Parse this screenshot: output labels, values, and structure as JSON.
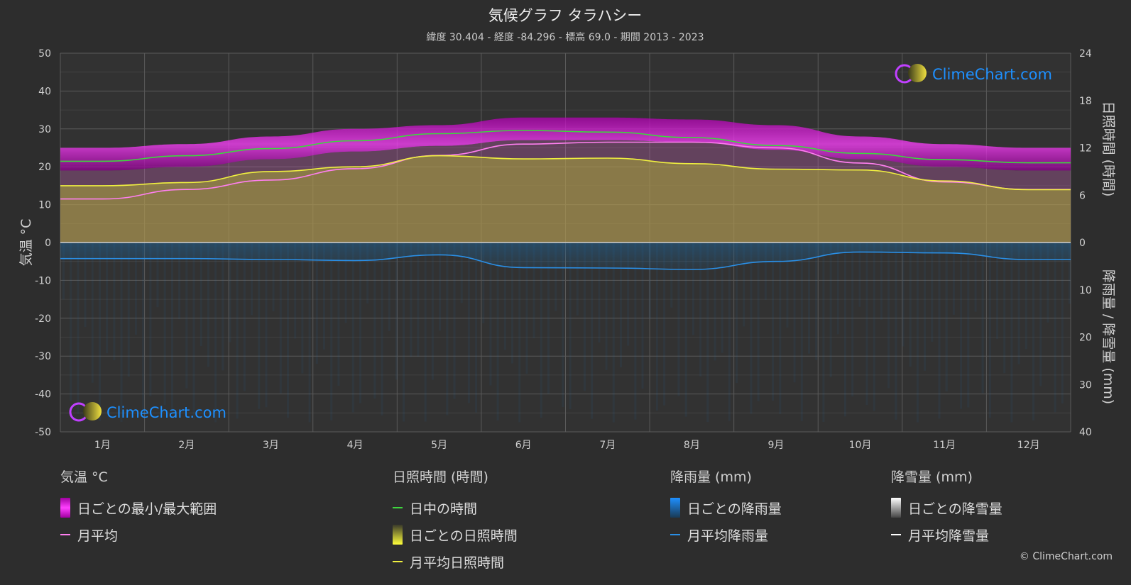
{
  "title": "気候グラフ タラハシー",
  "subtitle": "緯度 30.404 - 経度 -84.296 - 標高 69.0 - 期間 2013 - 2023",
  "watermark": "ClimeChart.com",
  "copyright": "© ClimeChart.com",
  "colors": {
    "background": "#2d2d2d",
    "plot_bg": "#323232",
    "grid": "#5a5a5a",
    "temp_range": "#d42fd4",
    "temp_avg": "#ff7ff0",
    "daylight": "#3ed63e",
    "sunshine_bar": "#a9a836",
    "sunshine_avg": "#f0f040",
    "rain_bar": "#2a6fa8",
    "rain_avg": "#2a8fe6",
    "snow": "#ffffff"
  },
  "chart_data": {
    "type": "area",
    "x_categories": [
      "1月",
      "2月",
      "3月",
      "4月",
      "5月",
      "6月",
      "7月",
      "8月",
      "9月",
      "10月",
      "11月",
      "12月"
    ],
    "y_left": {
      "label": "気温 °C",
      "ticks": [
        "50",
        "40",
        "30",
        "20",
        "10",
        "0",
        "-10",
        "-20",
        "-30",
        "-40",
        "-50"
      ],
      "range": [
        -50,
        50
      ]
    },
    "y_right_top": {
      "label": "日照時間 (時間)",
      "ticks": [
        "24",
        "18",
        "12",
        "6",
        "0"
      ],
      "range": [
        0,
        24
      ]
    },
    "y_right_bottom": {
      "label": "降雨量 / 降雪量 (mm)",
      "ticks": [
        "10",
        "20",
        "30",
        "40"
      ],
      "range": [
        0,
        40
      ]
    },
    "series": [
      {
        "name": "月平均",
        "unit": "°C",
        "values": [
          11.5,
          14,
          16.5,
          19.5,
          23,
          26,
          26.5,
          26.5,
          25,
          21,
          16,
          14
        ]
      },
      {
        "name": "日ごとの最小/最大範囲",
        "unit": "°C",
        "min": [
          19,
          20,
          22,
          24,
          25.5,
          27,
          27,
          26.5,
          24.5,
          22,
          20,
          19
        ],
        "max": [
          25,
          26,
          28,
          30,
          31,
          33,
          33,
          32.5,
          31,
          28,
          26,
          25
        ]
      },
      {
        "name": "日中の時間",
        "unit": "時間",
        "values": [
          10.3,
          11.0,
          11.9,
          12.9,
          13.8,
          14.2,
          14.0,
          13.3,
          12.3,
          11.3,
          10.5,
          10.1
        ]
      },
      {
        "name": "月平均日照時間",
        "unit": "時間",
        "values": [
          7.2,
          7.6,
          9.0,
          9.6,
          11.0,
          10.6,
          10.7,
          10.0,
          9.3,
          9.2,
          7.8,
          6.7
        ]
      },
      {
        "name": "月平均降雨量",
        "unit": "mm",
        "values": [
          3.4,
          3.4,
          3.6,
          3.8,
          2.6,
          5.3,
          5.4,
          5.7,
          4.0,
          2.0,
          2.2,
          3.6
        ]
      },
      {
        "name": "月平均降雪量",
        "unit": "mm",
        "values": [
          0,
          0,
          0,
          0,
          0,
          0,
          0,
          0,
          0,
          0,
          0,
          0
        ]
      }
    ],
    "grid": true
  },
  "legend": {
    "temperature": {
      "heading": "気温 °C",
      "range": "日ごとの最小/最大範囲",
      "avg": "月平均"
    },
    "sunshine": {
      "heading": "日照時間 (時間)",
      "daylight": "日中の時間",
      "daily": "日ごとの日照時間",
      "avg": "月平均日照時間"
    },
    "rain": {
      "heading": "降雨量 (mm)",
      "daily": "日ごとの降雨量",
      "avg": "月平均降雨量"
    },
    "snow": {
      "heading": "降雪量 (mm)",
      "daily": "日ごとの降雪量",
      "avg": "月平均降雪量"
    }
  }
}
